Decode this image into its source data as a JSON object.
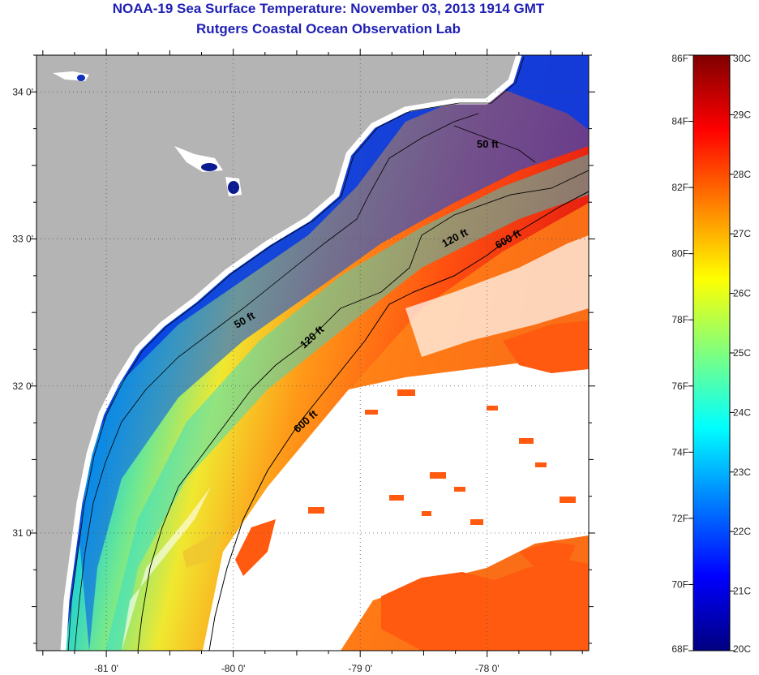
{
  "title": {
    "line1": "NOAA-19 Sea Surface Temperature:  November 03, 2013 1914 GMT",
    "line2": "Rutgers Coastal Ocean Observation Lab"
  },
  "map": {
    "lon_range": [
      -81.55,
      -77.2
    ],
    "lat_range": [
      30.2,
      34.25
    ],
    "x_ticks": [
      {
        "value": -81,
        "label": "-81 0'"
      },
      {
        "value": -80,
        "label": "-80 0'"
      },
      {
        "value": -79,
        "label": "-79 0'"
      },
      {
        "value": -78,
        "label": "-78 0'"
      }
    ],
    "y_ticks": [
      {
        "value": 34,
        "label": "34 0'"
      },
      {
        "value": 33,
        "label": "33 0'"
      },
      {
        "value": 32,
        "label": "32 0'"
      },
      {
        "value": 31,
        "label": "31 0'"
      }
    ],
    "grid": "dotted",
    "land_color": "#b4b4b4",
    "cloud_color": "#ffffff",
    "contours": [
      {
        "label": "50 ft"
      },
      {
        "label": "50 ft"
      },
      {
        "label": "120 ft"
      },
      {
        "label": "120 ft"
      },
      {
        "label": "600 ft"
      },
      {
        "label": "600 ft"
      }
    ]
  },
  "colorbar": {
    "fahrenheit_labels": [
      "86F",
      "84F",
      "82F",
      "80F",
      "78F",
      "76F",
      "74F",
      "72F",
      "70F",
      "68F"
    ],
    "celsius_labels": [
      "30C",
      "29C",
      "28C",
      "27C",
      "26C",
      "25C",
      "24C",
      "23C",
      "22C",
      "21C",
      "20C"
    ],
    "range_f": [
      68,
      86
    ],
    "range_c": [
      20,
      30
    ],
    "colors": [
      "#00007f",
      "#0000ff",
      "#007fff",
      "#00ffff",
      "#7fff7f",
      "#ffff00",
      "#ff7f00",
      "#ff0000",
      "#7f0000"
    ]
  }
}
